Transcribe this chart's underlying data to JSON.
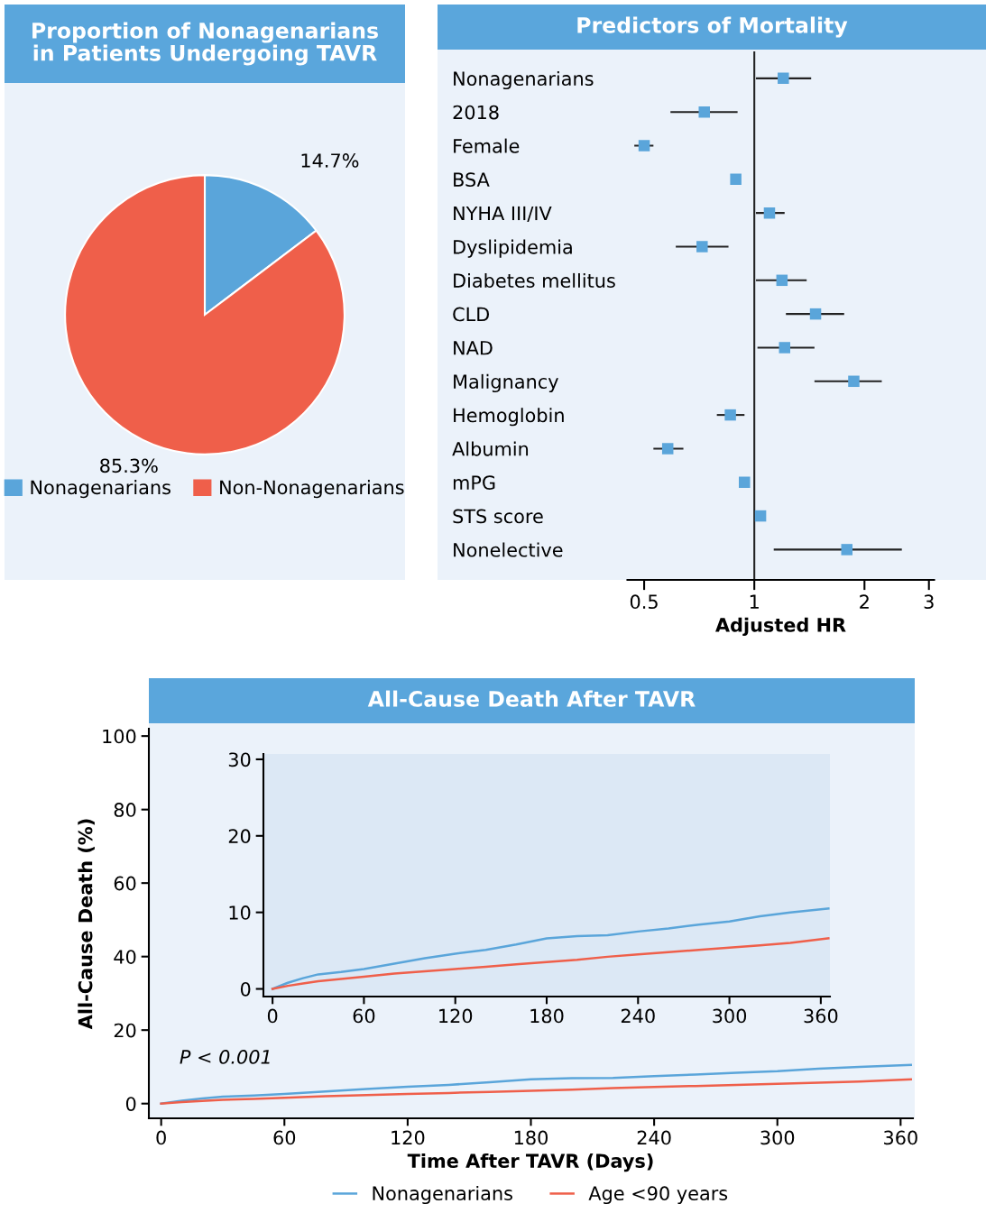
{
  "chart_data": [
    {
      "type": "pie",
      "title": "Proportion of Nonagenarians\nin Patients Undergoing TAVR",
      "categories": [
        "Nonagenarians",
        "Non-Nonagenarians"
      ],
      "values": [
        14.7,
        85.3
      ],
      "colors": [
        "#5aa5da",
        "#ef5f4a"
      ],
      "value_labels": [
        "14.7%",
        "85.3%"
      ],
      "legend": "bottom"
    },
    {
      "type": "scatter",
      "orientation": "horizontal",
      "title": "Predictors of Mortality",
      "xlabel": "Adjusted HR",
      "marker": "square",
      "log": "x",
      "xlim": [
        0.45,
        3.1
      ],
      "xticks": [
        0.5,
        1,
        2,
        3
      ],
      "categories": [
        "Nonagenarians",
        "2018",
        "Female",
        "BSA",
        "NYHA III/IV",
        "Dyslipidemia",
        "Diabetes mellitus",
        "CLD",
        "NAD",
        "Malignancy",
        "Hemoglobin",
        "Albumin",
        "mPG",
        "STS score",
        "Nonelective"
      ],
      "color": "#5aa5da",
      "values": [
        1.2,
        0.73,
        0.5,
        0.89,
        1.1,
        0.72,
        1.19,
        1.47,
        1.21,
        1.87,
        0.86,
        0.58,
        0.94,
        1.04,
        1.79
      ],
      "errors": [
        [
          1.01,
          1.43
        ],
        [
          0.59,
          0.9
        ],
        [
          0.47,
          0.53
        ],
        null,
        [
          1.01,
          1.21
        ],
        [
          0.61,
          0.85
        ],
        [
          1.01,
          1.39
        ],
        [
          1.22,
          1.76
        ],
        [
          1.02,
          1.46
        ],
        [
          1.46,
          2.23
        ],
        [
          0.79,
          0.94
        ],
        [
          0.53,
          0.64
        ],
        null,
        null,
        [
          1.13,
          2.53
        ]
      ],
      "ref_lines": [
        {
          "axis": "x",
          "value": 1,
          "color": "#222222"
        }
      ]
    },
    {
      "type": "line",
      "title": "All-Cause Death After TAVR",
      "xlabel": "Time After TAVR (Days)",
      "ylabel": "All-Cause Death (%)",
      "xlim": [
        -6,
        366
      ],
      "ylim": [
        -4,
        102
      ],
      "xticks": [
        0,
        60,
        120,
        180,
        240,
        300,
        360
      ],
      "yticks": [
        0,
        20,
        40,
        60,
        80,
        100
      ],
      "legend": "bottom",
      "annotations": [
        "P < 0.001"
      ],
      "series": [
        {
          "name": "Nonagenarians",
          "color": "#5aa5da",
          "x": [
            0,
            10,
            20,
            30,
            45,
            60,
            80,
            100,
            120,
            140,
            160,
            180,
            200,
            220,
            240,
            260,
            280,
            300,
            320,
            340,
            365
          ],
          "values": [
            0,
            0.8,
            1.4,
            1.9,
            2.2,
            2.6,
            3.3,
            4.0,
            4.6,
            5.1,
            5.8,
            6.6,
            6.9,
            7.0,
            7.5,
            7.9,
            8.4,
            8.8,
            9.5,
            10.0,
            10.5
          ]
        },
        {
          "name": "Age <90 years",
          "color": "#ef5f4a",
          "x": [
            0,
            10,
            20,
            30,
            45,
            60,
            80,
            100,
            120,
            140,
            160,
            180,
            200,
            220,
            240,
            260,
            280,
            300,
            320,
            340,
            365
          ],
          "values": [
            0,
            0.4,
            0.7,
            1.0,
            1.3,
            1.6,
            2.0,
            2.3,
            2.6,
            2.9,
            3.2,
            3.5,
            3.8,
            4.2,
            4.5,
            4.8,
            5.1,
            5.4,
            5.7,
            6.0,
            6.6
          ]
        }
      ]
    },
    {
      "type": "line",
      "xlim": [
        -6,
        366
      ],
      "ylim": [
        -1,
        30.7
      ],
      "xticks": [
        0,
        60,
        120,
        180,
        240,
        300,
        360
      ],
      "yticks": [
        0,
        10,
        20,
        30
      ],
      "series": [
        {
          "color": "#5aa5da",
          "x": [
            0,
            10,
            20,
            30,
            45,
            60,
            80,
            100,
            120,
            140,
            160,
            180,
            200,
            220,
            240,
            260,
            280,
            300,
            320,
            340,
            365
          ],
          "values": [
            0,
            0.8,
            1.4,
            1.9,
            2.2,
            2.6,
            3.3,
            4.0,
            4.6,
            5.1,
            5.8,
            6.6,
            6.9,
            7.0,
            7.5,
            7.9,
            8.4,
            8.8,
            9.5,
            10.0,
            10.5
          ]
        },
        {
          "color": "#ef5f4a",
          "x": [
            0,
            10,
            20,
            30,
            45,
            60,
            80,
            100,
            120,
            140,
            160,
            180,
            200,
            220,
            240,
            260,
            280,
            300,
            320,
            340,
            365
          ],
          "values": [
            0,
            0.4,
            0.7,
            1.0,
            1.3,
            1.6,
            2.0,
            2.3,
            2.6,
            2.9,
            3.2,
            3.5,
            3.8,
            4.2,
            4.5,
            4.8,
            5.1,
            5.4,
            5.7,
            6.0,
            6.6
          ]
        }
      ]
    }
  ]
}
